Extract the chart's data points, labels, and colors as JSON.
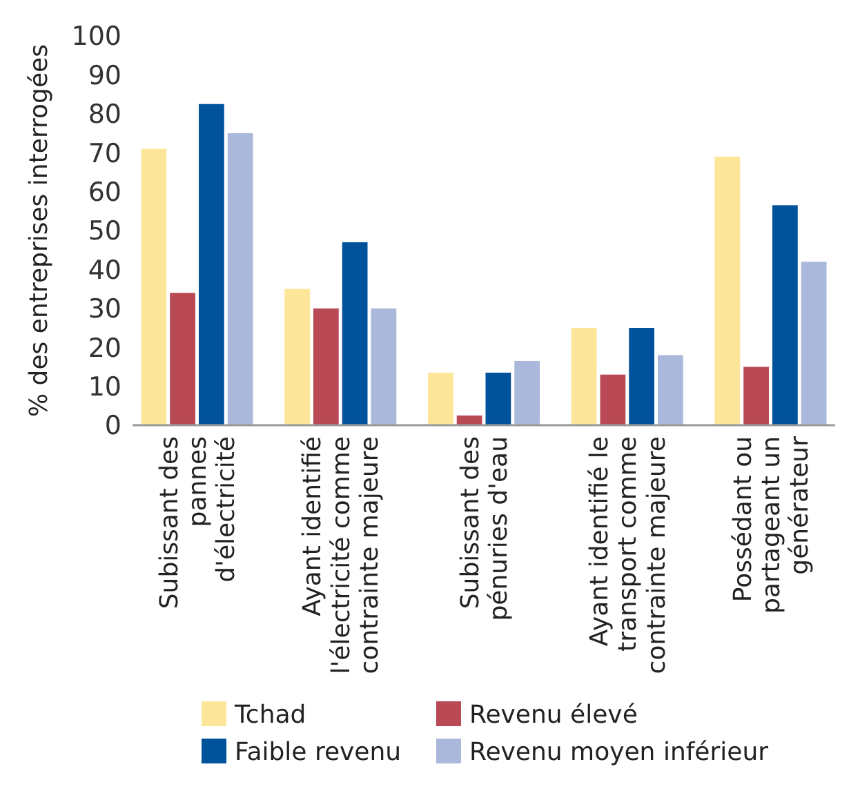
{
  "chart_data": {
    "type": "bar",
    "ylabel": "% des entreprises interrogées",
    "categories": [
      "Subissant des\npannes\nd'électricité",
      "Ayant identifié\nl'électricité comme\ncontrainte majeure",
      "Subissant des\npénuries d'eau",
      "Ayant identifié le\ntransport comme\ncontrainte majeure",
      "Possédant ou\npartageant un\ngénérateur"
    ],
    "series": [
      {
        "name": "Tchad",
        "color": "#fde699",
        "values": [
          71,
          35,
          13.5,
          25,
          69
        ]
      },
      {
        "name": "Revenu élevé",
        "color": "#b94a55",
        "values": [
          34,
          30,
          2.5,
          13,
          15
        ]
      },
      {
        "name": "Faible revenu",
        "color": "#00529b",
        "values": [
          82.5,
          47,
          13.5,
          25,
          56.5
        ]
      },
      {
        "name": "Revenu moyen inférieur",
        "color": "#aab8db",
        "values": [
          75,
          30,
          16.5,
          18,
          42
        ]
      }
    ],
    "ylim": [
      0,
      100
    ],
    "yticks": [
      0,
      10,
      20,
      30,
      40,
      50,
      60,
      70,
      80,
      90,
      100
    ],
    "grid": false,
    "legend": "bottom"
  }
}
